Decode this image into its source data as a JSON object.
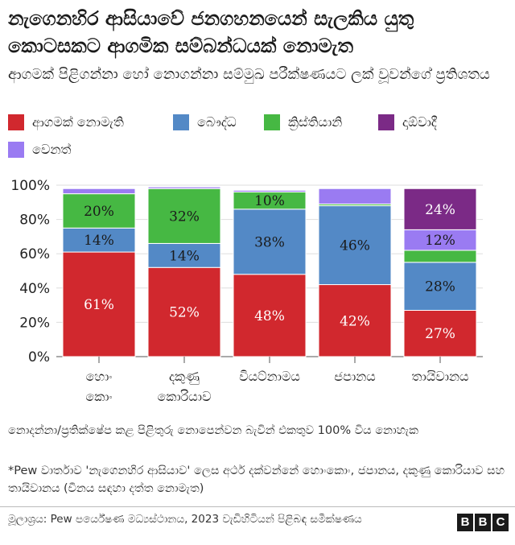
{
  "title": "නැගෙනහිර ආසියාවේ ජනගහනයෙන් සැලකිය යුතු කොටසකට ආගමික සම්බන්ධයක් නොමැත",
  "subtitle": "ආගමක් පිළිගන්නා හෝ නොගන්නා සම්මුඛ පරීක්ෂණයට ලක් වූවන්ගේ ප්‍රතිශතය",
  "legend": [
    {
      "label": "ආගමක් නොමැති",
      "color": "#d1282e"
    },
    {
      "label": "බෞද්ධ",
      "color": "#5389c6"
    },
    {
      "label": "ක්‍රිස්තියානි",
      "color": "#46b843"
    },
    {
      "label": "දාඕවාදී",
      "color": "#7b2a86"
    },
    {
      "label": "වෙනත්",
      "color": "#9a7bf2"
    }
  ],
  "chart_data": {
    "type": "bar",
    "stacked": true,
    "categories": [
      [
        "හොං",
        "කොං"
      ],
      [
        "දකුණු",
        "කොරියාව"
      ],
      [
        "වියට්නාමය"
      ],
      [
        "ජපානය"
      ],
      [
        "තායිවානය"
      ]
    ],
    "yticks": [
      "0%",
      "20%",
      "40%",
      "60%",
      "80%",
      "100%"
    ],
    "ylim": [
      0,
      100
    ],
    "grid": true,
    "series": [
      {
        "name": "ආගමක් නොමැති",
        "color": "#d1282e",
        "values": [
          61,
          52,
          48,
          42,
          27
        ],
        "labels": [
          "61%",
          "52%",
          "48%",
          "42%",
          "27%"
        ]
      },
      {
        "name": "බෞද්ධ",
        "color": "#5389c6",
        "values": [
          14,
          14,
          38,
          46,
          28
        ],
        "labels": [
          "14%",
          "14%",
          "38%",
          "46%",
          "28%"
        ]
      },
      {
        "name": "ක්‍රිස්තියානි",
        "color": "#46b843",
        "values": [
          20,
          32,
          10,
          1,
          7
        ],
        "labels": [
          "20%",
          "32%",
          "10%",
          "",
          ""
        ]
      },
      {
        "name": "දාඕවාදී",
        "color": "#7b2a86",
        "values": [
          0,
          0,
          0,
          0,
          24
        ],
        "labels": [
          "",
          "",
          "",
          "",
          "24%"
        ]
      },
      {
        "name": "වෙනත්",
        "color": "#9a7bf2",
        "values": [
          3,
          1,
          1,
          9,
          12
        ],
        "labels": [
          "",
          "",
          "",
          "",
          "12%"
        ]
      }
    ],
    "stack_order": [
      0,
      1,
      2,
      4,
      3
    ]
  },
  "notes": {
    "rounding": "නොදන්නා/ප්‍රතික්ෂේප කළ පිළිතුරු නොපෙන්වන බැවින් එකතුව 100% විය නොහැක",
    "pew": "*Pew වාර්තාව 'නැගෙනහිර ආසියාව' ලෙස අර්ථ දක්වන්නේ හොංකොං, ජපානය, දකුණු කොරියාව සහ තායිවානය (චීනය සඳහා දත්ත නොමැත)"
  },
  "source": "මූලාශ්‍රය: Pew පර්යේෂණ මධ්‍යස්ථානය, 2023 වැඩිහිටියන් පිළිබඳ සමීක්ෂණය",
  "logo": [
    "B",
    "B",
    "C"
  ]
}
